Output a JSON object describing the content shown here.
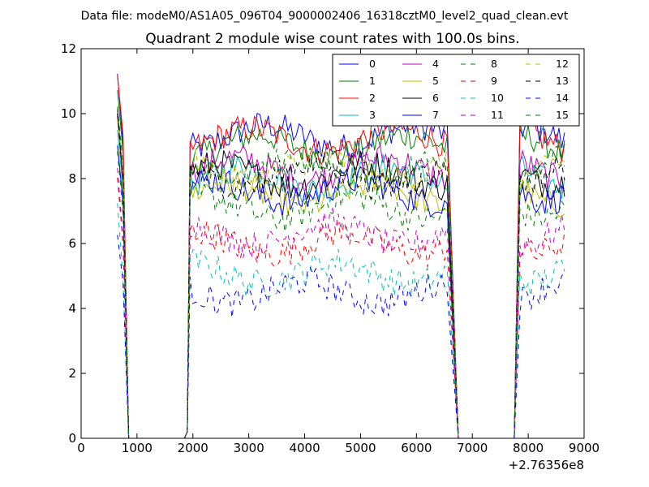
{
  "chart_data": {
    "type": "line",
    "suptitle": "Data file: modeM0/AS1A05_096T04_9000002406_16318cztM0_level2_quad_clean.evt",
    "title": "Quadrant 2 module wise count rates with 100.0s bins.",
    "xlabel": "",
    "ylabel": "",
    "x_offset_label": "+2.76356e8",
    "xlim": [
      0,
      9000
    ],
    "ylim": [
      0,
      12
    ],
    "x_ticks": [
      0,
      1000,
      2000,
      3000,
      4000,
      5000,
      6000,
      7000,
      8000,
      9000
    ],
    "y_ticks": [
      0,
      2,
      4,
      6,
      8,
      10,
      12
    ],
    "x_tick_labels": [
      "0",
      "1000",
      "2000",
      "3000",
      "4000",
      "5000",
      "6000",
      "7000",
      "8000",
      "9000"
    ],
    "y_tick_labels": [
      "0",
      "2",
      "4",
      "6",
      "8",
      "10",
      "12"
    ],
    "legend_position": "top-right",
    "legend_columns": 4,
    "segments": [
      {
        "x_start": 650,
        "x_end": 750
      },
      {
        "x_start": 1950,
        "x_end": 6550
      },
      {
        "x_start": 7850,
        "x_end": 8650
      }
    ],
    "series": [
      {
        "name": "0",
        "color": "#0000ff",
        "dash": "solid",
        "level": 9.3
      },
      {
        "name": "1",
        "color": "#007f00",
        "dash": "solid",
        "level": 9.0
      },
      {
        "name": "2",
        "color": "#ff0000",
        "dash": "solid",
        "level": 9.2
      },
      {
        "name": "3",
        "color": "#00bfbf",
        "dash": "solid",
        "level": 8.0
      },
      {
        "name": "4",
        "color": "#bf00bf",
        "dash": "solid",
        "level": 8.3
      },
      {
        "name": "5",
        "color": "#bfbf00",
        "dash": "solid",
        "level": 7.5
      },
      {
        "name": "6",
        "color": "#000000",
        "dash": "solid",
        "level": 8.1
      },
      {
        "name": "7",
        "color": "#0000ff",
        "dash": "solid",
        "level": 7.6
      },
      {
        "name": "8",
        "color": "#007f00",
        "dash": "dashed",
        "level": 7.1
      },
      {
        "name": "9",
        "color": "#ff0000",
        "dash": "dashed",
        "level": 6.0
      },
      {
        "name": "10",
        "color": "#00bfbf",
        "dash": "dashed",
        "level": 5.1
      },
      {
        "name": "11",
        "color": "#bf00bf",
        "dash": "dashed",
        "level": 6.3
      },
      {
        "name": "12",
        "color": "#bfbf00",
        "dash": "dashed",
        "level": 8.3
      },
      {
        "name": "13",
        "color": "#000000",
        "dash": "dashed",
        "level": 8.1
      },
      {
        "name": "14",
        "color": "#0000ff",
        "dash": "dashed",
        "level": 4.5
      },
      {
        "name": "15",
        "color": "#007f00",
        "dash": "dashed",
        "level": 8.3
      }
    ]
  }
}
